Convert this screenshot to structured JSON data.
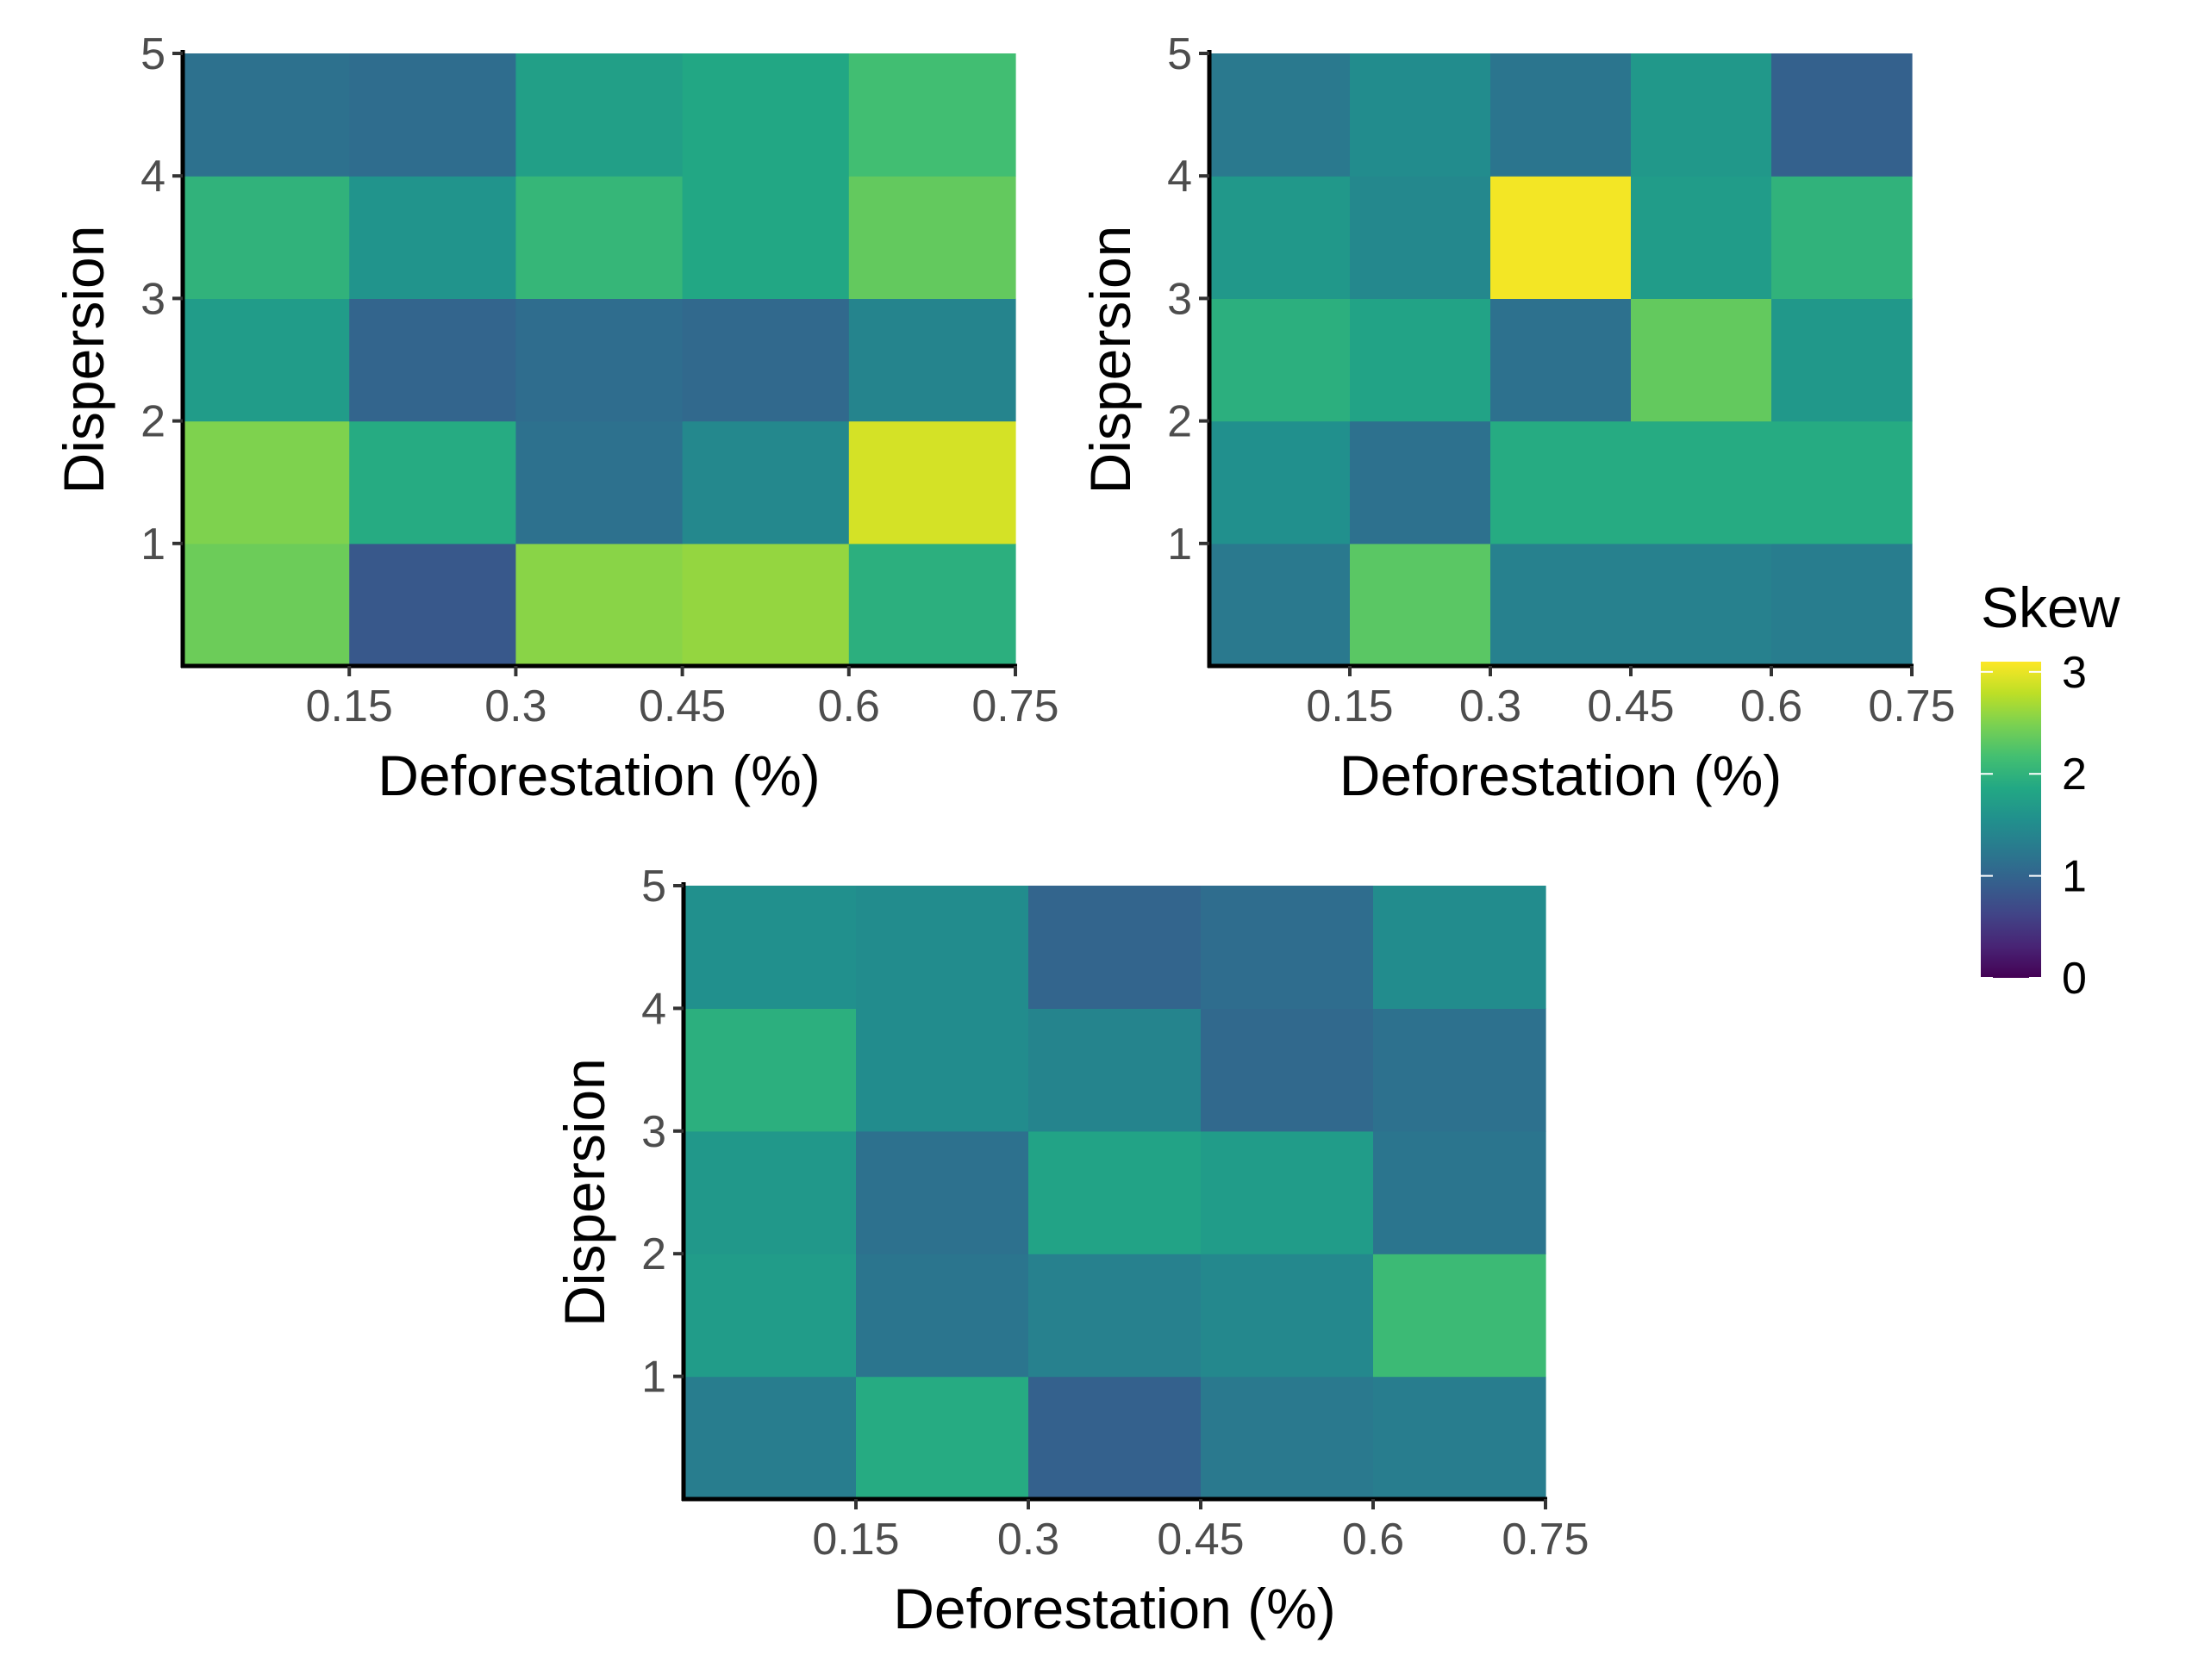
{
  "colors": {
    "viridis": [
      "#440154",
      "#482475",
      "#414487",
      "#355f8d",
      "#2a788e",
      "#21908d",
      "#22a884",
      "#43bf71",
      "#7ad151",
      "#bddf26",
      "#fde725"
    ],
    "axis": "#000000",
    "tick_text": "#4d4d4d"
  },
  "legend": {
    "title": "Skew",
    "ticks": [
      "0",
      "1",
      "2",
      "3"
    ],
    "range": [
      0,
      3.1
    ],
    "placement": "right"
  },
  "chart_data": [
    {
      "type": "heatmap",
      "xlabel": "Deforestation (%)",
      "ylabel": "Dispersion",
      "x_ticks": [
        "0.15",
        "0.3",
        "0.45",
        "0.6",
        "0.75"
      ],
      "y_ticks": [
        "1",
        "2",
        "3",
        "4",
        "5"
      ],
      "x_cells": [
        0.075,
        0.225,
        0.375,
        0.525,
        0.675
      ],
      "y_cells": [
        0.5,
        1.5,
        2.5,
        3.5,
        4.5
      ],
      "xlim": [
        0,
        0.75
      ],
      "ylim": [
        0,
        5
      ],
      "values": [
        [
          2.4,
          0.85,
          2.55,
          2.6,
          1.95
        ],
        [
          2.5,
          1.9,
          1.15,
          1.45,
          2.9
        ],
        [
          1.7,
          1.0,
          1.1,
          1.05,
          1.4
        ],
        [
          2.0,
          1.6,
          2.05,
          1.85,
          2.35
        ],
        [
          1.15,
          1.1,
          1.75,
          1.85,
          2.15
        ]
      ]
    },
    {
      "type": "heatmap",
      "xlabel": "Deforestation (%)",
      "ylabel": "Dispersion",
      "x_ticks": [
        "0.15",
        "0.3",
        "0.45",
        "0.6",
        "0.75"
      ],
      "y_ticks": [
        "1",
        "2",
        "3",
        "4",
        "5"
      ],
      "x_cells": [
        0.075,
        0.225,
        0.375,
        0.525,
        0.675
      ],
      "y_cells": [
        0.5,
        1.5,
        2.5,
        3.5,
        4.5
      ],
      "xlim": [
        0,
        0.75
      ],
      "ylim": [
        0,
        5
      ],
      "values": [
        [
          1.25,
          2.3,
          1.35,
          1.35,
          1.3
        ],
        [
          1.55,
          1.15,
          1.9,
          1.9,
          1.9
        ],
        [
          1.95,
          1.8,
          1.15,
          2.35,
          1.65
        ],
        [
          1.65,
          1.45,
          3.05,
          1.7,
          2.0
        ],
        [
          1.25,
          1.5,
          1.2,
          1.65,
          0.95
        ]
      ]
    },
    {
      "type": "heatmap",
      "xlabel": "Deforestation (%)",
      "ylabel": "Dispersion",
      "x_ticks": [
        "0.15",
        "0.3",
        "0.45",
        "0.6",
        "0.75"
      ],
      "y_ticks": [
        "1",
        "2",
        "3",
        "4",
        "5"
      ],
      "x_cells": [
        0.075,
        0.225,
        0.375,
        0.525,
        0.675
      ],
      "y_cells": [
        0.5,
        1.5,
        2.5,
        3.5,
        4.5
      ],
      "xlim": [
        0,
        0.75
      ],
      "ylim": [
        0,
        5
      ],
      "values": [
        [
          1.3,
          1.9,
          0.95,
          1.25,
          1.3
        ],
        [
          1.7,
          1.2,
          1.35,
          1.45,
          2.1
        ],
        [
          1.65,
          1.15,
          1.8,
          1.7,
          1.2
        ],
        [
          1.95,
          1.5,
          1.4,
          1.05,
          1.15
        ],
        [
          1.55,
          1.5,
          1.0,
          1.1,
          1.5
        ]
      ]
    }
  ]
}
